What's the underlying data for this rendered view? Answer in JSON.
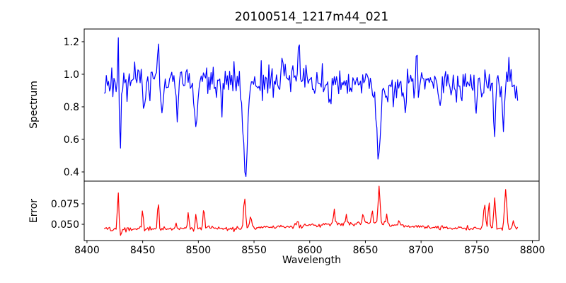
{
  "chart_data": {
    "type": "line",
    "title": "20100514_1217m44_021",
    "xlabel": "Wavelength",
    "xlim": [
      8397.5,
      8806.0
    ],
    "x_data_range": [
      8415.4,
      8786.7
    ],
    "n_points": 380,
    "xticks": {
      "values": [
        8400,
        8450,
        8500,
        8550,
        8600,
        8650,
        8700,
        8750,
        8800
      ],
      "labels": [
        "8400",
        "8450",
        "8500",
        "8550",
        "8600",
        "8650",
        "8700",
        "8750",
        "8800"
      ]
    },
    "grid": false,
    "legend": "none",
    "subplots": [
      {
        "name": "spectrum",
        "ylabel": "Spectrum",
        "line_color": "#0000ff",
        "ylim": [
          0.3435,
          1.278
        ],
        "yticks": {
          "values": [
            0.4,
            0.6,
            0.8,
            1.0,
            1.2
          ],
          "labels": [
            "0.4",
            "0.6",
            "0.8",
            "1.0",
            "1.2"
          ]
        },
        "seed": 21,
        "noise_sigma": 0.05,
        "clip": [
          0.372,
          1.238
        ],
        "baseline": [
          [
            8415,
            0.945
          ],
          [
            8450,
            0.948
          ],
          [
            8500,
            0.952
          ],
          [
            8540,
            0.955
          ],
          [
            8580,
            0.968
          ],
          [
            8610,
            0.962
          ],
          [
            8650,
            0.952
          ],
          [
            8690,
            0.948
          ],
          [
            8730,
            0.944
          ],
          [
            8760,
            0.938
          ],
          [
            8787,
            0.925
          ]
        ],
        "features": [
          [
            8428.0,
            0.27,
            0.5
          ],
          [
            8429.8,
            -0.4,
            0.6
          ],
          [
            8436,
            -0.12,
            0.6
          ],
          [
            8451,
            -0.17,
            0.7
          ],
          [
            8458,
            0.12,
            0.5
          ],
          [
            8464,
            0.26,
            0.5
          ],
          [
            8467.5,
            -0.2,
            0.6
          ],
          [
            8481,
            -0.2,
            0.7
          ],
          [
            8490,
            0.12,
            0.6
          ],
          [
            8497.8,
            -0.28,
            1.3
          ],
          [
            8513,
            0.1,
            0.6
          ],
          [
            8521,
            -0.17,
            0.7
          ],
          [
            8542.1,
            -0.47,
            1.6
          ],
          [
            8542.1,
            -0.1,
            4.5
          ],
          [
            8575,
            0.1,
            0.8
          ],
          [
            8590,
            0.2,
            0.6
          ],
          [
            8618,
            -0.15,
            0.8
          ],
          [
            8634,
            -0.1,
            0.6
          ],
          [
            8662.1,
            -0.44,
            1.5
          ],
          [
            8662.1,
            -0.09,
            4.0
          ],
          [
            8675,
            -0.1,
            0.6
          ],
          [
            8686,
            -0.18,
            0.7
          ],
          [
            8696,
            0.24,
            0.5
          ],
          [
            8717,
            -0.16,
            0.7
          ],
          [
            8736,
            -0.12,
            0.6
          ],
          [
            8749,
            -0.23,
            0.6
          ],
          [
            8758,
            0.12,
            0.5
          ],
          [
            8766,
            -0.34,
            0.8
          ],
          [
            8774,
            -0.3,
            0.7
          ],
          [
            8779,
            0.2,
            0.5
          ]
        ]
      },
      {
        "name": "error",
        "ylabel": "Error",
        "line_color": "#ff0000",
        "ylim": [
          0.0302,
          0.1026
        ],
        "yticks": {
          "values": [
            0.05,
            0.075
          ],
          "labels": [
            "0.050",
            "0.075"
          ]
        },
        "seed": 22,
        "noise_sigma": 0.0013,
        "clip": [
          0.034,
          0.0965
        ],
        "baseline": [
          [
            8415,
            0.0445
          ],
          [
            8470,
            0.0448
          ],
          [
            8520,
            0.045
          ],
          [
            8555,
            0.046
          ],
          [
            8585,
            0.0472
          ],
          [
            8615,
            0.0495
          ],
          [
            8645,
            0.0515
          ],
          [
            8660,
            0.051
          ],
          [
            8675,
            0.049
          ],
          [
            8692,
            0.0478
          ],
          [
            8700,
            0.047
          ],
          [
            8735,
            0.0455
          ],
          [
            8760,
            0.0445
          ],
          [
            8787,
            0.0452
          ]
        ],
        "features": [
          [
            8428,
            0.046,
            0.6
          ],
          [
            8430.5,
            -0.011,
            0.6
          ],
          [
            8450,
            0.024,
            0.55
          ],
          [
            8464,
            0.039,
            0.6
          ],
          [
            8480,
            0.007,
            0.7
          ],
          [
            8491,
            0.018,
            0.6
          ],
          [
            8498,
            0.018,
            0.6
          ],
          [
            8505,
            0.026,
            0.6
          ],
          [
            8541.5,
            0.037,
            0.8
          ],
          [
            8547,
            0.013,
            0.9
          ],
          [
            8589,
            0.007,
            0.7
          ],
          [
            8622,
            0.017,
            0.7
          ],
          [
            8633,
            0.009,
            0.7
          ],
          [
            8648,
            0.011,
            0.7
          ],
          [
            8656,
            0.019,
            0.6
          ],
          [
            8662.3,
            0.05,
            0.8
          ],
          [
            8669,
            0.012,
            0.6
          ],
          [
            8680,
            0.007,
            0.6
          ],
          [
            8757,
            0.03,
            0.8
          ],
          [
            8761,
            0.033,
            0.7
          ],
          [
            8766,
            0.038,
            0.8
          ],
          [
            8776,
            0.046,
            1.0
          ],
          [
            8783,
            0.008,
            0.8
          ]
        ]
      }
    ]
  }
}
